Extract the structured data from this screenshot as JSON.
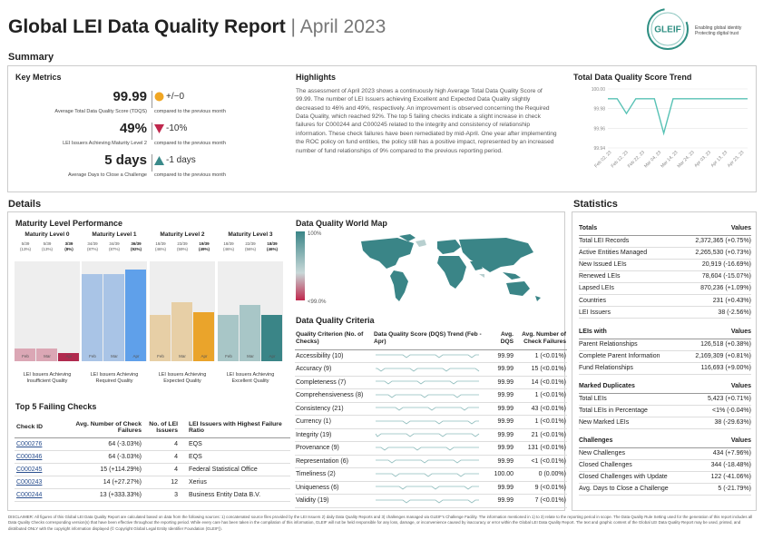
{
  "header": {
    "title_main": "Global LEI Data Quality Report",
    "title_sep": " | ",
    "title_period": "April 2023",
    "logo_text": "GLEIF",
    "tagline_1": "Enabling global identity",
    "tagline_2": "Protecting digital trust"
  },
  "sections": {
    "summary": "Summary",
    "details": "Details",
    "statistics": "Statistics"
  },
  "key_metrics": {
    "title": "Key Metrics",
    "items": [
      {
        "value": "99.99",
        "label": "Average Total Data Quality Score (TDQS)",
        "change": "+/−0",
        "compare": "compared to the previous month",
        "indicator": "circle",
        "color": "#f0a623"
      },
      {
        "value": "49%",
        "label": "LEI Issuers Achieving Maturity Level 2",
        "change": "-10%",
        "compare": "compared to the previous month",
        "indicator": "triangle-down",
        "color": "#c0284d"
      },
      {
        "value": "5 days",
        "label": "Average Days to Close a Challenge",
        "change": "-1 days",
        "compare": "compared to the previous month",
        "indicator": "triangle-up",
        "color": "#3a8a8a"
      }
    ]
  },
  "highlights": {
    "title": "Highlights",
    "text": "The assessment of April 2023 shows a continuously high Average Total Data Quality Score of 99.99. The number of LEI Issuers achieving Excellent and Expected Data Quality slightly decreased to 46% and 49%, respectively. An improvement is observed concerning the Required Data Quality, which reached 92%. The top 5 failing checks indicate a slight increase in check failures for C000244 and C000245 related to the integrity and consistency of relationship information. These check failures have been remediated by mid-April. One year after implementing the ROC policy on fund entities, the policy still has a positive impact, represented by an increased number of fund relationships of 9% compared to the previous reporting period."
  },
  "trend": {
    "title": "Total Data Quality Score Trend",
    "y_ticks": [
      "100.00",
      "99.98",
      "99.96",
      "99.94"
    ],
    "x_ticks": [
      "Feb 02, 23",
      "Feb 12, 23",
      "Feb 22, 23",
      "Mar 04, 23",
      "Mar 14, 23",
      "Mar 24, 23",
      "Apr 03, 23",
      "Apr 13, 23",
      "Apr 23, 23"
    ]
  },
  "chart_data": {
    "type": "line",
    "title": "Total Data Quality Score Trend",
    "ylim": [
      99.94,
      100.0
    ],
    "x": [
      "Feb 02, 23",
      "Feb 04, 23",
      "Feb 05, 23",
      "Feb 06, 23",
      "Feb 12, 23",
      "Feb 13, 23",
      "Feb 14, 23",
      "Feb 15, 23",
      "Feb 22, 23",
      "Mar 04, 23",
      "Mar 14, 23",
      "Mar 24, 23",
      "Apr 03, 23",
      "Apr 13, 23",
      "Apr 23, 23",
      "Apr 30, 23"
    ],
    "values": [
      99.99,
      99.99,
      99.975,
      99.99,
      99.99,
      99.99,
      99.955,
      99.99,
      99.99,
      99.99,
      99.99,
      99.99,
      99.99,
      99.99,
      99.99,
      99.99
    ]
  },
  "details": {
    "maturity": {
      "title": "Maturity Level Performance",
      "months": [
        "Feb",
        "Mar",
        "Apr"
      ],
      "levels": [
        {
          "title": "Maturity Level 0",
          "counts": [
            "5/39",
            "5/39",
            "3/39"
          ],
          "pcts": [
            "(13%)",
            "(13%)",
            "(8%)"
          ],
          "fractions": [
            0.13,
            0.13,
            0.08
          ],
          "colors": [
            "#dba7b5",
            "#dba7b5",
            "#b02a4e"
          ],
          "foot": "LEI Issuers Achieving Insufficient Quality"
        },
        {
          "title": "Maturity Level 1",
          "counts": [
            "34/39",
            "34/39",
            "36/39"
          ],
          "pcts": [
            "(87%)",
            "(87%)",
            "(92%)"
          ],
          "fractions": [
            0.87,
            0.87,
            0.92
          ],
          "colors": [
            "#a9c4e6",
            "#a9c4e6",
            "#5fa0ea"
          ],
          "foot": "LEI Issuers Achieving Required Quality"
        },
        {
          "title": "Maturity Level 2",
          "counts": [
            "18/39",
            "23/39",
            "19/39"
          ],
          "pcts": [
            "(46%)",
            "(59%)",
            "(49%)"
          ],
          "fractions": [
            0.46,
            0.59,
            0.49
          ],
          "colors": [
            "#e7cfa6",
            "#e7cfa6",
            "#eaa42b"
          ],
          "foot": "LEI Issuers Achieving Expected Quality"
        },
        {
          "title": "Maturity Level 3",
          "counts": [
            "18/39",
            "22/39",
            "18/39"
          ],
          "pcts": [
            "(46%)",
            "(56%)",
            "(46%)"
          ],
          "fractions": [
            0.46,
            0.56,
            0.46
          ],
          "colors": [
            "#a8c6c7",
            "#a8c6c7",
            "#3a8587"
          ],
          "foot": "LEI Issuers Achieving Excellent Quality"
        }
      ]
    },
    "top_failing": {
      "title": "Top 5 Failing Checks",
      "headers": [
        "Check ID",
        "Avg. Number of Check Failures",
        "No. of LEI Issuers",
        "LEI Issuers with Highest Failure Ratio"
      ],
      "rows": [
        [
          "C000276",
          "64 (-3.03%)",
          "4",
          "EQS"
        ],
        [
          "C000346",
          "64 (-3.03%)",
          "4",
          "EQS"
        ],
        [
          "C000245",
          "15 (+114.29%)",
          "4",
          "Federal Statistical Office"
        ],
        [
          "C000243",
          "14 (+27.27%)",
          "12",
          "Xerius"
        ],
        [
          "C000244",
          "13 (+333.33%)",
          "3",
          "Business Entity Data B.V."
        ]
      ]
    },
    "world_map": {
      "title": "Data Quality World Map",
      "legend_top": "100%",
      "legend_bottom": "<99.0%"
    },
    "criteria": {
      "title": "Data Quality Criteria",
      "headers": [
        "Quality Criterion (No. of Checks)",
        "Data Quality Score (DQS) Trend (Feb - Apr)",
        "Avg. DQS",
        "Avg. Number of Check Failures"
      ],
      "rows": [
        [
          "Accessibility (10)",
          "99.99",
          "1 (<0.01%)"
        ],
        [
          "Accuracy (9)",
          "99.99",
          "15 (<0.01%)"
        ],
        [
          "Completeness (7)",
          "99.99",
          "14 (<0.01%)"
        ],
        [
          "Comprehensiveness (8)",
          "99.99",
          "1 (<0.01%)"
        ],
        [
          "Consistency (21)",
          "99.99",
          "43 (<0.01%)"
        ],
        [
          "Currency (1)",
          "99.99",
          "1 (<0.01%)"
        ],
        [
          "Integrity (19)",
          "99.99",
          "21 (<0.01%)"
        ],
        [
          "Provenance (9)",
          "99.99",
          "131 (<0.01%)"
        ],
        [
          "Representation (6)",
          "99.99",
          "<1 (<0.01%)"
        ],
        [
          "Timeliness (2)",
          "100.00",
          "0 (0.00%)"
        ],
        [
          "Uniqueness (6)",
          "99.99",
          "9 (<0.01%)"
        ],
        [
          "Validity (19)",
          "99.99",
          "7 (<0.01%)"
        ]
      ]
    }
  },
  "statistics": {
    "groups": [
      {
        "title": "Totals",
        "values_label": "Values",
        "rows": [
          [
            "Total LEI Records",
            "2,372,365 (+0.75%)"
          ],
          [
            "Active Entities Managed",
            "2,265,530 (+0.73%)"
          ],
          [
            "New Issued LEIs",
            "20,919 (-16.69%)"
          ],
          [
            "Renewed LEIs",
            "78,604 (-15.07%)"
          ],
          [
            "Lapsed LEIs",
            "870,236 (+1.09%)"
          ],
          [
            "Countries",
            "231 (+0.43%)"
          ],
          [
            "LEI Issuers",
            "38 (-2.56%)"
          ]
        ]
      },
      {
        "title": "LEIs with",
        "values_label": "Values",
        "rows": [
          [
            "Parent Relationships",
            "126,518 (+0.38%)"
          ],
          [
            "Complete Parent Information",
            "2,169,309 (+0.81%)"
          ],
          [
            "Fund Relationships",
            "116,693 (+9.00%)"
          ]
        ]
      },
      {
        "title": "Marked Duplicates",
        "values_label": "Values",
        "rows": [
          [
            "Total LEIs",
            "5,423 (+0.71%)"
          ],
          [
            "Total LEIs in Percentage",
            "<1% (-0.04%)"
          ],
          [
            "New Marked LEIs",
            "38 (-29.63%)"
          ]
        ]
      },
      {
        "title": "Challenges",
        "values_label": "Values",
        "rows": [
          [
            "New Challenges",
            "434 (+7.96%)"
          ],
          [
            "Closed Challenges",
            "344 (-18.48%)"
          ],
          [
            "Closed Challenges with Update",
            "122 (-41.06%)"
          ],
          [
            "Avg. Days to Close a Challenge",
            "5 (-21.79%)"
          ]
        ]
      }
    ]
  },
  "disclaimer": "DISCLAIMER: All figures of this Global LEI Data Quality Report are calculated based on data from the following sources: 1) concatenated source files provided by the LEI Issuers 2) daily Data Quality Reports and 3) challenges managed via GLEIF's Challenge Facility. The information mentioned in 1) to 3) relate to the reporting period in scope. The Data Quality Rule Setting used for the generation of this report includes all Data Quality Checks corresponding version(s) that have been effective throughout the reporting period. While every care has been taken in the compilation of this information, GLEIF will not be held responsible for any loss, damage, or inconvenience caused by inaccuracy or error within the Global LEI Data Quality Report. The text and graphic content of the Global LEI Data Quality Report may be used, printed, and distributed ONLY with the copyright information displayed (© Copyright Global Legal Entity Identifier Foundation (GLEIF))."
}
